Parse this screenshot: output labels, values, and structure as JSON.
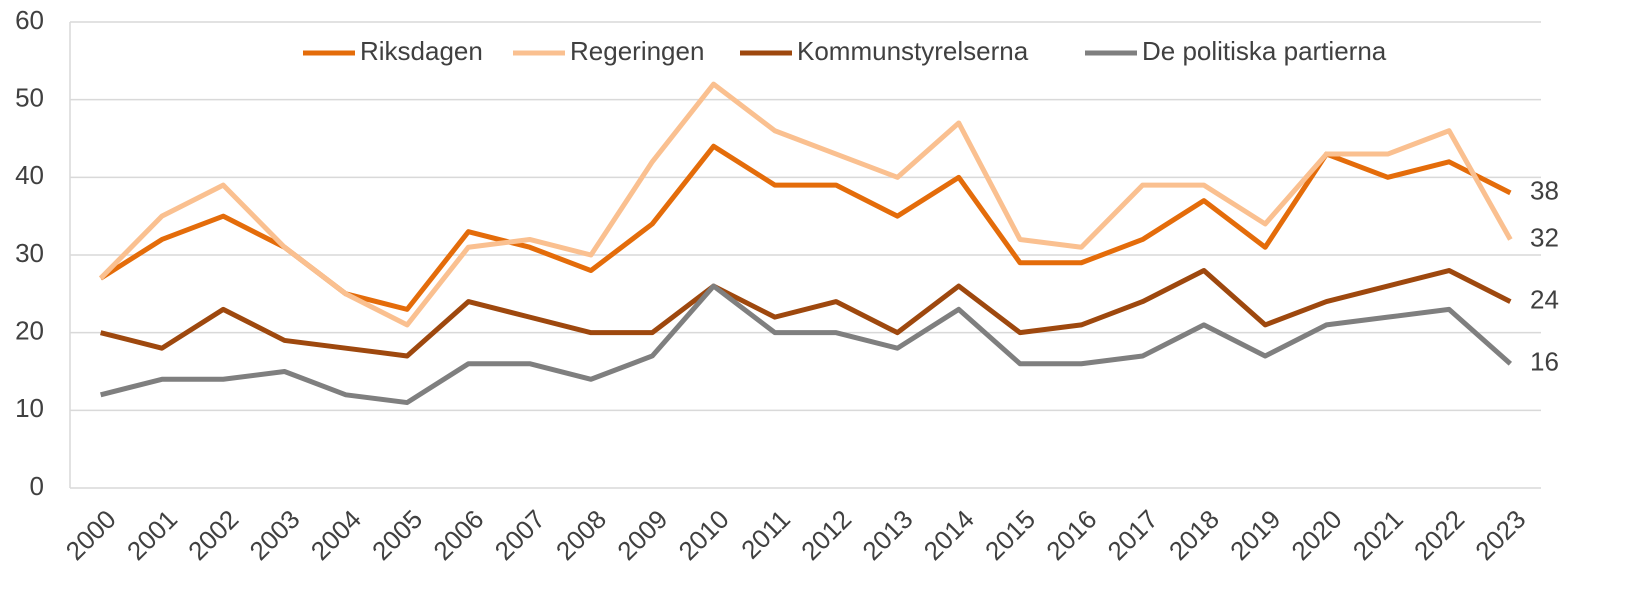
{
  "chart_data": {
    "type": "line",
    "categories": [
      "2000",
      "2001",
      "2002",
      "2003",
      "2004",
      "2005",
      "2006",
      "2007",
      "2008",
      "2009",
      "2010",
      "2011",
      "2012",
      "2013",
      "2014",
      "2015",
      "2016",
      "2017",
      "2018",
      "2019",
      "2020",
      "2021",
      "2022",
      "2023"
    ],
    "series": [
      {
        "name": "Riksdagen",
        "color": "#e46c0a",
        "values": [
          27,
          32,
          35,
          31,
          25,
          23,
          33,
          31,
          28,
          34,
          44,
          39,
          39,
          35,
          40,
          29,
          29,
          32,
          37,
          31,
          43,
          40,
          42,
          38
        ]
      },
      {
        "name": "Regeringen",
        "color": "#fac090",
        "values": [
          27,
          35,
          39,
          31,
          25,
          21,
          31,
          32,
          30,
          42,
          52,
          46,
          43,
          40,
          47,
          32,
          31,
          39,
          39,
          34,
          43,
          43,
          46,
          32
        ]
      },
      {
        "name": "Kommunstyrelserna",
        "color": "#9e480e",
        "values": [
          20,
          18,
          23,
          19,
          18,
          17,
          24,
          22,
          20,
          20,
          26,
          22,
          24,
          20,
          26,
          20,
          21,
          24,
          28,
          21,
          24,
          26,
          28,
          24
        ]
      },
      {
        "name": "De politiska partierna",
        "color": "#7f7f7f",
        "values": [
          12,
          14,
          14,
          15,
          12,
          11,
          16,
          16,
          14,
          17,
          26,
          20,
          20,
          18,
          23,
          16,
          16,
          17,
          21,
          17,
          21,
          22,
          23,
          16
        ]
      }
    ],
    "ylim": [
      0,
      60
    ],
    "yticks": [
      0,
      10,
      20,
      30,
      40,
      50,
      60
    ],
    "grid": true
  }
}
